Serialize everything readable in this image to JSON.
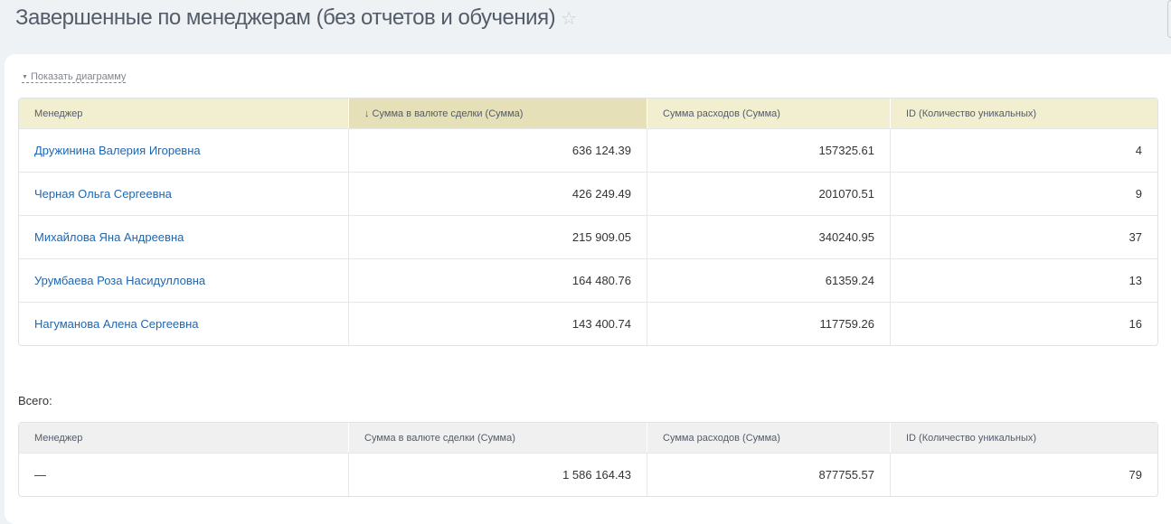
{
  "page": {
    "title": "Завершенные по менеджерам (без отчетов и обучения)",
    "star_icon": "star-outline-icon"
  },
  "toggle_label": "Показать диаграмму",
  "table": {
    "headers": [
      "Менеджер",
      "↓ Сумма в валюте сделки (Сумма)",
      "Сумма расходов (Сумма)",
      "ID (Количество уникальных)"
    ],
    "sorted_column": 1,
    "rows": [
      [
        "Дружинина Валерия Игоревна",
        "636 124.39",
        "157325.61",
        "4"
      ],
      [
        "Черная Ольга Сергеевна",
        "426 249.49",
        "201070.51",
        "9"
      ],
      [
        "Михайлова Яна Андреевна",
        "215 909.05",
        "340240.95",
        "37"
      ],
      [
        "Урумбаева Роза Насидулловна",
        "164 480.76",
        "61359.24",
        "13"
      ],
      [
        "Нагуманова Алена Сергеевна",
        "143 400.74",
        "117759.26",
        "16"
      ]
    ]
  },
  "totals": {
    "label": "Всего:",
    "headers": [
      "Менеджер",
      "Сумма в валюте сделки (Сумма)",
      "Сумма расходов (Сумма)",
      "ID (Количество уникальных)"
    ],
    "row": [
      "—",
      "1 586 164.43",
      "877755.57",
      "79"
    ]
  }
}
